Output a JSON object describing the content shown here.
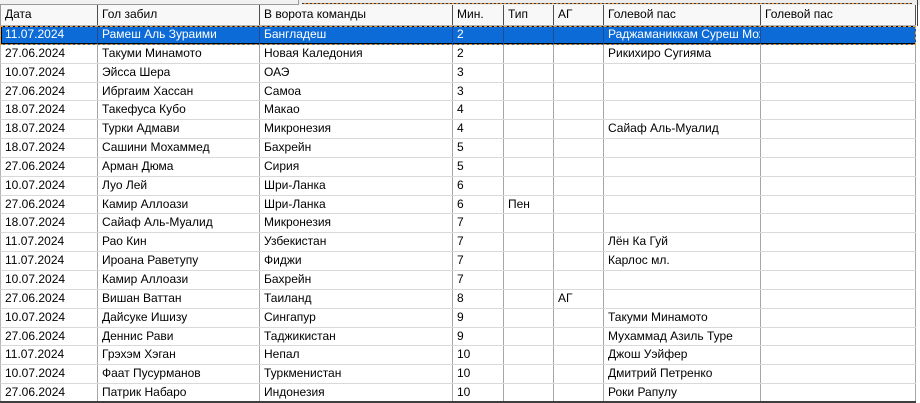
{
  "table": {
    "columns": [
      {
        "id": "date",
        "label": "Дата"
      },
      {
        "id": "scorer",
        "label": "Гол забил"
      },
      {
        "id": "team",
        "label": "В ворота команды"
      },
      {
        "id": "minute",
        "label": "Мин."
      },
      {
        "id": "type",
        "label": "Тип"
      },
      {
        "id": "og",
        "label": "АГ"
      },
      {
        "id": "assist",
        "label": "Голевой пас"
      },
      {
        "id": "assist2",
        "label": "Голевой пас"
      }
    ],
    "selected_row_index": 0,
    "rows": [
      [
        "11.07.2024",
        "Рамеш Аль Зураими",
        "Бангладеш",
        "2",
        "",
        "",
        "Раджаманиккам Суреш Мохан",
        ""
      ],
      [
        "27.06.2024",
        "Такуми Минамото",
        "Новая Каледония",
        "2",
        "",
        "",
        "Рикихиро Сугияма",
        ""
      ],
      [
        "10.07.2024",
        "Эйсса Шера",
        "ОАЭ",
        "3",
        "",
        "",
        "",
        ""
      ],
      [
        "27.06.2024",
        "Ибргаим Хассан",
        "Самоа",
        "3",
        "",
        "",
        "",
        ""
      ],
      [
        "18.07.2024",
        "Такефуса Кубо",
        "Макао",
        "4",
        "",
        "",
        "",
        ""
      ],
      [
        "18.07.2024",
        "Турки Адмави",
        "Микронезия",
        "4",
        "",
        "",
        "Сайаф Аль-Муалид",
        ""
      ],
      [
        "18.07.2024",
        "Сашини Мохаммед",
        "Бахрейн",
        "5",
        "",
        "",
        "",
        ""
      ],
      [
        "27.06.2024",
        "Арман Дюма",
        "Сирия",
        "5",
        "",
        "",
        "",
        ""
      ],
      [
        "10.07.2024",
        "Луо Лей",
        "Шри-Ланка",
        "6",
        "",
        "",
        "",
        ""
      ],
      [
        "27.06.2024",
        "Камир Аллоази",
        "Шри-Ланка",
        "6",
        "Пен",
        "",
        "",
        ""
      ],
      [
        "18.07.2024",
        "Сайаф Аль-Муалид",
        "Микронезия",
        "7",
        "",
        "",
        "",
        ""
      ],
      [
        "11.07.2024",
        "Рао Кин",
        "Узбекистан",
        "7",
        "",
        "",
        "Лён Ка Гуй",
        ""
      ],
      [
        "11.07.2024",
        "Ироана Раветупу",
        "Фиджи",
        "7",
        "",
        "",
        "Карлос мл.",
        ""
      ],
      [
        "10.07.2024",
        "Камир Аллоази",
        "Бахрейн",
        "7",
        "",
        "",
        "",
        ""
      ],
      [
        "27.06.2024",
        "Вишан Ваттан",
        "Таиланд",
        "8",
        "",
        "АГ",
        "",
        ""
      ],
      [
        "10.07.2024",
        "Дайсуке Ишизу",
        "Сингапур",
        "9",
        "",
        "",
        "Такуми Минамото",
        ""
      ],
      [
        "27.06.2024",
        "Деннис Рави",
        "Таджикистан",
        "9",
        "",
        "",
        "Мухаммад Азиль Туре",
        ""
      ],
      [
        "11.07.2024",
        "Грэхэм Хэган",
        "Непал",
        "10",
        "",
        "",
        "Джош Уэйфер",
        ""
      ],
      [
        "10.07.2024",
        "Фаат Пусурманов",
        "Туркменистан",
        "10",
        "",
        "",
        "Дмитрий Петренко",
        ""
      ],
      [
        "27.06.2024",
        "Патрик Набаро",
        "Индонезия",
        "10",
        "",
        "",
        "Роки Рапулу",
        ""
      ]
    ]
  },
  "colors": {
    "selection_bg": "#0d6bd8",
    "selection_text": "#ffffff",
    "marquee": "#eda13a",
    "header_bg": "#f8f8f8",
    "grid_vertical_line": "#a6a6a6",
    "grid_horizontal_line": "#d9d9d9"
  }
}
